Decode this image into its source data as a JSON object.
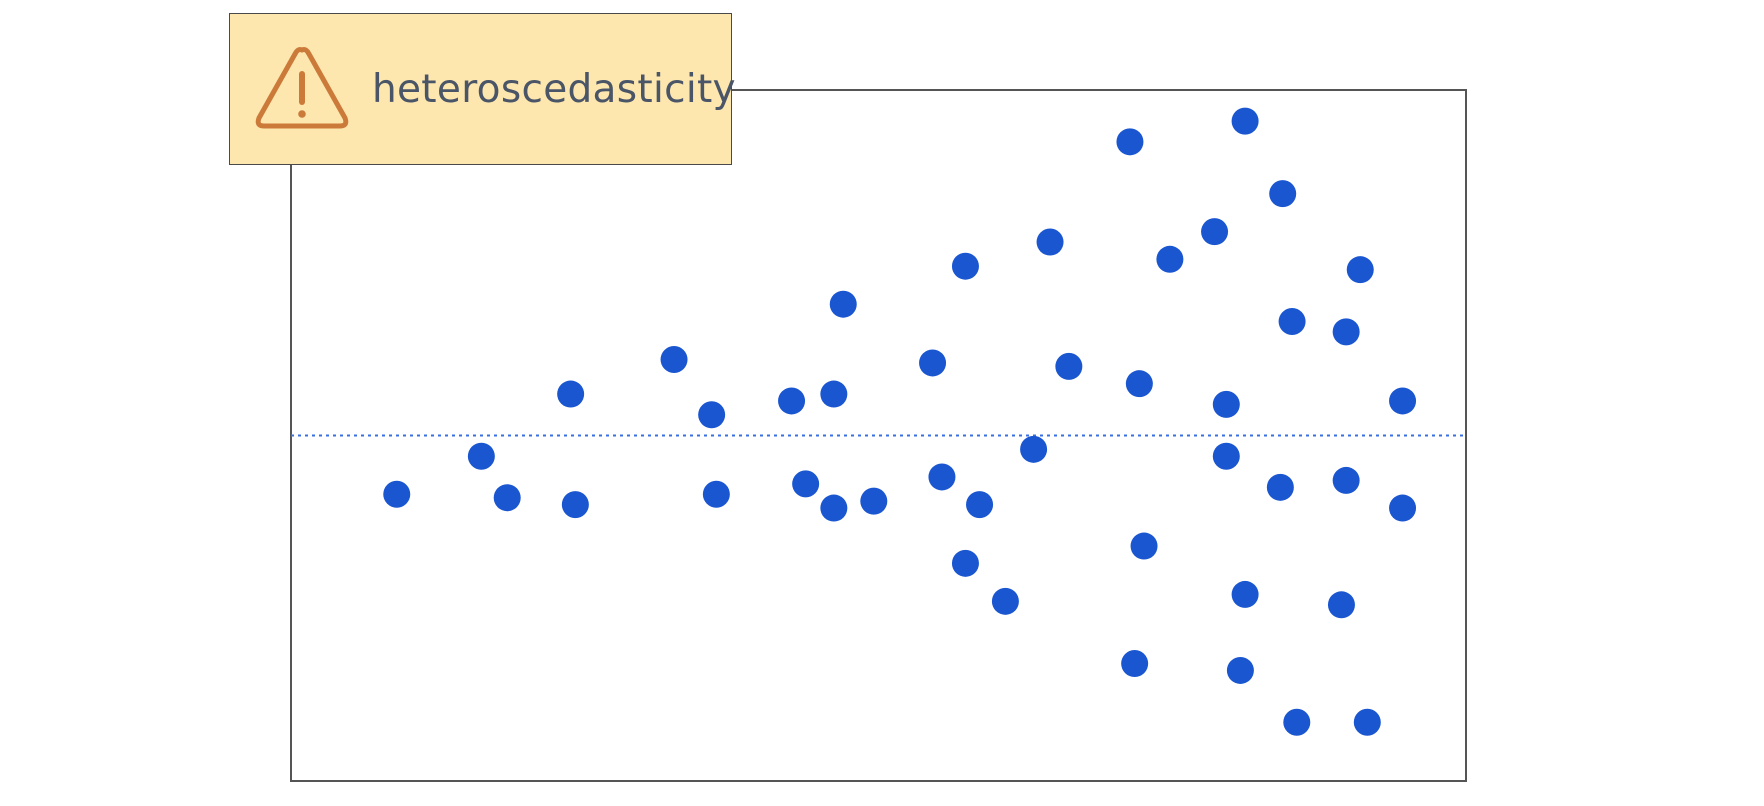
{
  "callout": {
    "label": "heteroscedasticity",
    "icon": "warning-triangle-icon",
    "background": "#fde7ae",
    "icon_color": "#cc7a3a",
    "text_color": "#4a5568"
  },
  "chart_data": {
    "type": "scatter",
    "title": "",
    "xlabel": "",
    "ylabel": "",
    "xlim": [
      0,
      100
    ],
    "ylim": [
      -100,
      100
    ],
    "grid": false,
    "reference_line": {
      "y": 0,
      "style": "dotted",
      "color": "#3b6fe0"
    },
    "point_color": "#1a56d0",
    "points": [
      {
        "x": 9,
        "y": -17
      },
      {
        "x": 16.2,
        "y": -6
      },
      {
        "x": 18.4,
        "y": -18
      },
      {
        "x": 23.8,
        "y": 12
      },
      {
        "x": 24.2,
        "y": -20
      },
      {
        "x": 32.6,
        "y": 22
      },
      {
        "x": 35.8,
        "y": 6
      },
      {
        "x": 36.2,
        "y": -17
      },
      {
        "x": 42.6,
        "y": 10
      },
      {
        "x": 43.8,
        "y": -14
      },
      {
        "x": 46.2,
        "y": 12
      },
      {
        "x": 46.2,
        "y": -21
      },
      {
        "x": 47,
        "y": 38
      },
      {
        "x": 49.6,
        "y": -19
      },
      {
        "x": 54.6,
        "y": 21
      },
      {
        "x": 55.4,
        "y": -12
      },
      {
        "x": 57.4,
        "y": 49
      },
      {
        "x": 57.4,
        "y": -37
      },
      {
        "x": 58.6,
        "y": -20
      },
      {
        "x": 60.8,
        "y": -48
      },
      {
        "x": 63.2,
        "y": -4
      },
      {
        "x": 64.6,
        "y": 56
      },
      {
        "x": 66.2,
        "y": 20
      },
      {
        "x": 71.4,
        "y": 85
      },
      {
        "x": 72.2,
        "y": 15
      },
      {
        "x": 71.8,
        "y": -66
      },
      {
        "x": 72.6,
        "y": -32
      },
      {
        "x": 74.8,
        "y": 51
      },
      {
        "x": 78.6,
        "y": 59
      },
      {
        "x": 79.6,
        "y": 9
      },
      {
        "x": 79.6,
        "y": -6
      },
      {
        "x": 81.2,
        "y": 91
      },
      {
        "x": 81.2,
        "y": -46
      },
      {
        "x": 80.8,
        "y": -68
      },
      {
        "x": 84.4,
        "y": 70
      },
      {
        "x": 85.2,
        "y": 33
      },
      {
        "x": 84.2,
        "y": -15
      },
      {
        "x": 85.6,
        "y": -83
      },
      {
        "x": 89.8,
        "y": 30
      },
      {
        "x": 89.8,
        "y": -13
      },
      {
        "x": 89.4,
        "y": -49
      },
      {
        "x": 91,
        "y": 48
      },
      {
        "x": 91.6,
        "y": -83
      },
      {
        "x": 94.6,
        "y": 10
      },
      {
        "x": 94.6,
        "y": -21
      }
    ]
  }
}
